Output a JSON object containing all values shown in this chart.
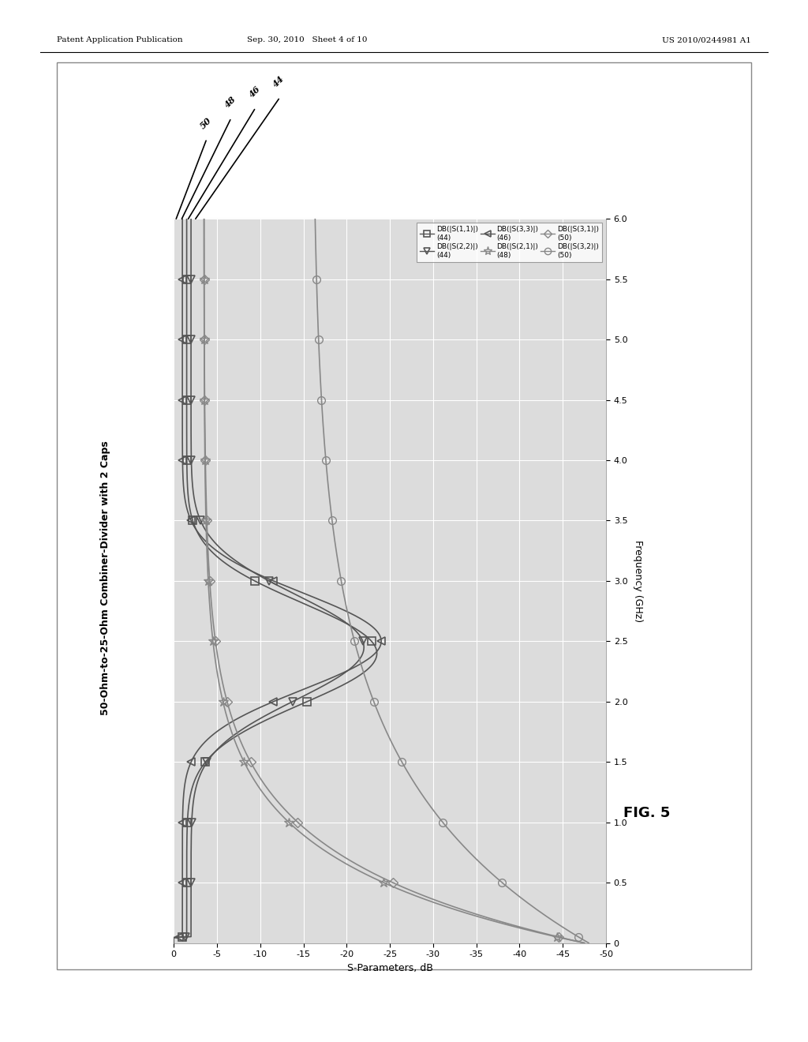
{
  "title": "50-Ohm-to-25-Ohm Combiner-Divider with 2 Caps",
  "xlabel_label": "S-Parameters, dB",
  "ylabel_label": "Frequency (GHz)",
  "xmin": 0,
  "xmax": -50,
  "ymin": 0,
  "ymax": 6,
  "x_ticks": [
    0,
    -5,
    -10,
    -15,
    -20,
    -25,
    -30,
    -35,
    -40,
    -45,
    -50
  ],
  "y_ticks": [
    0,
    0.5,
    1.0,
    1.5,
    2.0,
    2.5,
    3.0,
    3.5,
    4.0,
    4.5,
    5.0,
    5.5,
    6.0
  ],
  "header_left": "Patent Application Publication",
  "header_mid": "Sep. 30, 2010   Sheet 4 of 10",
  "header_right": "US 2010/0244981 A1",
  "fig_label": "FIG. 5",
  "callout_labels": [
    "50",
    "48",
    "46",
    "44"
  ],
  "legend_labels": [
    "DB(|S(1,1)|)\n(44)",
    "DB(|S(2,2)|)\n(44)",
    "DB(|S(3,3)|)\n(46)",
    "DB(|S(2,1)|)\n(48)",
    "DB(|S(3,1)|)\n(50)",
    "DB(|S(3,2)|)\n(50)"
  ],
  "legend_markers": [
    "s",
    "v",
    "<",
    "*",
    "D",
    "o"
  ],
  "background_color": "#ffffff",
  "plot_bg_color": "#dcdcdc",
  "grid_color": "#ffffff",
  "line_color": "#555555",
  "line_color2": "#888888",
  "border_color": "#aaaaaa"
}
